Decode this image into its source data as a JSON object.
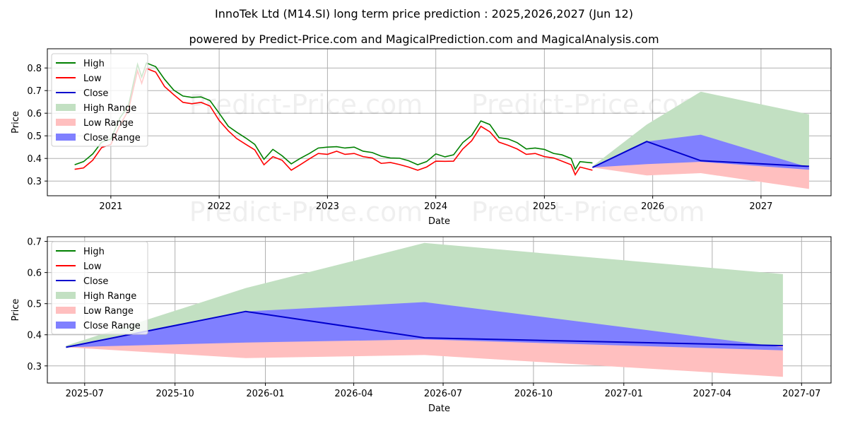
{
  "header": {
    "title": "InnoTek Ltd (M14.SI) long term price prediction : 2025,2026,2027 (Jun 12)",
    "subtitle": "powered by Predict-Price.com and MagicalPrediction.com and MagicalAnalysis.com"
  },
  "watermark": "Predict-Price.com",
  "colors": {
    "high": "#008000",
    "low": "#ff0000",
    "close": "#0000cd",
    "high_range": "#c2e0c2",
    "low_range": "#ffbfbf",
    "close_range": "#8080ff"
  },
  "legend": [
    "High",
    "Low",
    "Close",
    "High Range",
    "Low Range",
    "Close Range"
  ],
  "chart_data": [
    {
      "type": "line",
      "xlabel": "Date",
      "ylabel": "Price",
      "xlim": [
        "2020-06-01",
        "2027-08-25"
      ],
      "ylim": [
        0.235,
        0.885
      ],
      "x_ticks": [
        "2021",
        "2022",
        "2023",
        "2024",
        "2025",
        "2026",
        "2027"
      ],
      "y_ticks": [
        "0.3",
        "0.4",
        "0.5",
        "0.6",
        "0.7",
        "0.8"
      ],
      "legend_position": "upper-left",
      "history": {
        "dates": [
          "2020-09-01",
          "2020-10-01",
          "2020-11-01",
          "2020-12-01",
          "2021-01-01",
          "2021-02-01",
          "2021-03-01",
          "2021-04-01",
          "2021-04-15",
          "2021-05-01",
          "2021-06-01",
          "2021-07-01",
          "2021-08-01",
          "2021-09-01",
          "2021-10-01",
          "2021-11-01",
          "2021-12-01",
          "2022-01-01",
          "2022-02-01",
          "2022-03-01",
          "2022-04-01",
          "2022-05-01",
          "2022-06-01",
          "2022-07-01",
          "2022-08-01",
          "2022-09-01",
          "2022-10-01",
          "2022-11-01",
          "2022-12-01",
          "2023-01-01",
          "2023-02-01",
          "2023-03-01",
          "2023-04-01",
          "2023-05-01",
          "2023-06-01",
          "2023-07-01",
          "2023-08-01",
          "2023-09-01",
          "2023-10-01",
          "2023-11-01",
          "2023-12-01",
          "2024-01-01",
          "2024-02-01",
          "2024-03-01",
          "2024-04-01",
          "2024-05-01",
          "2024-06-01",
          "2024-07-01",
          "2024-08-01",
          "2024-09-01",
          "2024-10-01",
          "2024-11-01",
          "2024-12-01",
          "2025-01-01",
          "2025-02-01",
          "2025-03-01",
          "2025-04-01",
          "2025-04-15",
          "2025-05-01",
          "2025-06-12"
        ],
        "close": [
          0.36,
          0.37,
          0.4,
          0.46,
          0.47,
          0.56,
          0.62,
          0.8,
          0.74,
          0.81,
          0.79,
          0.73,
          0.69,
          0.66,
          0.65,
          0.66,
          0.64,
          0.58,
          0.53,
          0.5,
          0.47,
          0.45,
          0.38,
          0.42,
          0.4,
          0.36,
          0.38,
          0.41,
          0.43,
          0.43,
          0.44,
          0.43,
          0.43,
          0.42,
          0.41,
          0.39,
          0.39,
          0.385,
          0.37,
          0.36,
          0.37,
          0.4,
          0.395,
          0.4,
          0.45,
          0.49,
          0.55,
          0.53,
          0.48,
          0.47,
          0.45,
          0.43,
          0.43,
          0.42,
          0.41,
          0.4,
          0.38,
          0.34,
          0.37,
          0.36
        ]
      },
      "forecast": {
        "dates": [
          "2025-06-12",
          "2025-12-12",
          "2026-06-12",
          "2027-06-12"
        ],
        "close": [
          0.36,
          0.475,
          0.39,
          0.365
        ],
        "high_range": [
          0.365,
          0.55,
          0.695,
          0.595
        ],
        "low_range": [
          0.36,
          0.325,
          0.335,
          0.265
        ],
        "close_range_upper": [
          0.36,
          0.475,
          0.505,
          0.36
        ],
        "close_range_lower": [
          0.36,
          0.375,
          0.385,
          0.35
        ]
      }
    },
    {
      "type": "area",
      "xlabel": "Date",
      "ylabel": "Price",
      "xlim": [
        "2025-05-24",
        "2027-07-31"
      ],
      "ylim": [
        0.245,
        0.715
      ],
      "x_ticks": [
        "2025-07",
        "2025-10",
        "2026-01",
        "2026-04",
        "2026-07",
        "2026-10",
        "2027-01",
        "2027-04",
        "2027-07"
      ],
      "y_ticks": [
        "0.3",
        "0.4",
        "0.5",
        "0.6",
        "0.7"
      ],
      "legend_position": "upper-left",
      "forecast": {
        "dates": [
          "2025-06-12",
          "2025-12-12",
          "2026-06-12",
          "2027-06-12"
        ],
        "close": [
          0.36,
          0.475,
          0.39,
          0.365
        ],
        "high_range": [
          0.365,
          0.55,
          0.695,
          0.595
        ],
        "low_range": [
          0.36,
          0.325,
          0.335,
          0.265
        ],
        "close_range_upper": [
          0.36,
          0.475,
          0.505,
          0.36
        ],
        "close_range_lower": [
          0.36,
          0.375,
          0.385,
          0.35
        ]
      }
    }
  ]
}
